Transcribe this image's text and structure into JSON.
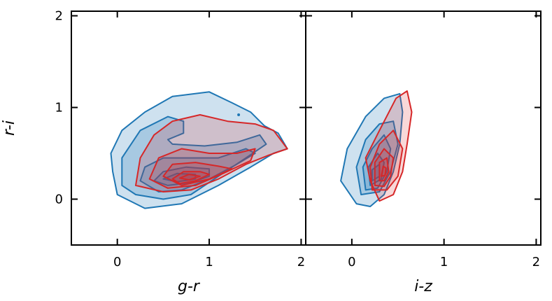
{
  "chart_data": [
    {
      "type": "contour",
      "xlabel": "g-r",
      "ylabel": "r-i",
      "xlim": [
        -0.5,
        2.05
      ],
      "ylim": [
        -0.5,
        2.05
      ],
      "xticks": [
        0,
        1,
        2
      ],
      "yticks": [
        0,
        1,
        2
      ],
      "x_tick_labels": [
        "0",
        "1",
        "2"
      ],
      "y_tick_labels": [
        "0",
        "1",
        "2"
      ],
      "series": [
        {
          "color": "#1f77b4",
          "fill": "rgba(31,119,180,0.22)",
          "levels": [
            [
              [
                0.0,
                0.05
              ],
              [
                -0.05,
                0.3
              ],
              [
                -0.07,
                0.5
              ],
              [
                0.05,
                0.75
              ],
              [
                0.3,
                0.95
              ],
              [
                0.6,
                1.12
              ],
              [
                1.0,
                1.17
              ],
              [
                1.25,
                1.05
              ],
              [
                1.45,
                0.95
              ],
              [
                1.6,
                0.8
              ],
              [
                1.75,
                0.72
              ],
              [
                1.85,
                0.55
              ],
              [
                1.7,
                0.5
              ],
              [
                1.45,
                0.35
              ],
              [
                1.1,
                0.15
              ],
              [
                0.7,
                -0.05
              ],
              [
                0.3,
                -0.1
              ]
            ],
            [
              [
                0.05,
                0.15
              ],
              [
                0.05,
                0.45
              ],
              [
                0.25,
                0.75
              ],
              [
                0.55,
                0.9
              ],
              [
                0.72,
                0.85
              ],
              [
                0.72,
                0.72
              ],
              [
                0.55,
                0.65
              ],
              [
                0.6,
                0.6
              ],
              [
                0.95,
                0.58
              ],
              [
                1.3,
                0.62
              ],
              [
                1.55,
                0.7
              ],
              [
                1.62,
                0.6
              ],
              [
                1.4,
                0.45
              ],
              [
                1.1,
                0.25
              ],
              [
                0.8,
                0.05
              ],
              [
                0.5,
                0.0
              ],
              [
                0.2,
                0.05
              ]
            ],
            [
              [
                0.25,
                0.2
              ],
              [
                0.3,
                0.35
              ],
              [
                0.5,
                0.45
              ],
              [
                0.8,
                0.45
              ],
              [
                1.1,
                0.45
              ],
              [
                1.4,
                0.55
              ],
              [
                1.5,
                0.5
              ],
              [
                1.3,
                0.38
              ],
              [
                1.0,
                0.22
              ],
              [
                0.7,
                0.1
              ],
              [
                0.45,
                0.08
              ]
            ],
            [
              [
                0.4,
                0.2
              ],
              [
                0.5,
                0.3
              ],
              [
                0.75,
                0.35
              ],
              [
                1.0,
                0.33
              ],
              [
                1.0,
                0.25
              ],
              [
                0.8,
                0.18
              ],
              [
                0.55,
                0.15
              ]
            ],
            [
              [
                0.5,
                0.22
              ],
              [
                0.65,
                0.28
              ],
              [
                0.85,
                0.27
              ],
              [
                0.85,
                0.22
              ],
              [
                0.65,
                0.19
              ]
            ]
          ]
        },
        {
          "color": "#d62728",
          "fill": "rgba(214,39,40,0.18)",
          "levels": [
            [
              [
                0.2,
                0.15
              ],
              [
                0.25,
                0.45
              ],
              [
                0.4,
                0.7
              ],
              [
                0.6,
                0.85
              ],
              [
                0.9,
                0.92
              ],
              [
                1.2,
                0.85
              ],
              [
                1.5,
                0.82
              ],
              [
                1.7,
                0.75
              ],
              [
                1.85,
                0.55
              ],
              [
                1.65,
                0.48
              ],
              [
                1.4,
                0.38
              ],
              [
                1.1,
                0.22
              ],
              [
                0.8,
                0.1
              ],
              [
                0.5,
                0.08
              ]
            ],
            [
              [
                0.35,
                0.22
              ],
              [
                0.45,
                0.45
              ],
              [
                0.7,
                0.55
              ],
              [
                1.0,
                0.5
              ],
              [
                1.3,
                0.5
              ],
              [
                1.5,
                0.55
              ],
              [
                1.45,
                0.42
              ],
              [
                1.15,
                0.28
              ],
              [
                0.85,
                0.15
              ],
              [
                0.55,
                0.12
              ]
            ],
            [
              [
                0.5,
                0.25
              ],
              [
                0.6,
                0.38
              ],
              [
                0.85,
                0.4
              ],
              [
                1.1,
                0.36
              ],
              [
                1.25,
                0.33
              ],
              [
                1.0,
                0.22
              ],
              [
                0.7,
                0.15
              ]
            ],
            [
              [
                0.6,
                0.22
              ],
              [
                0.72,
                0.3
              ],
              [
                0.9,
                0.3
              ],
              [
                1.0,
                0.27
              ],
              [
                0.85,
                0.2
              ],
              [
                0.68,
                0.17
              ]
            ],
            [
              [
                0.68,
                0.23
              ],
              [
                0.78,
                0.27
              ],
              [
                0.9,
                0.25
              ],
              [
                0.78,
                0.21
              ]
            ]
          ]
        }
      ]
    },
    {
      "type": "contour",
      "xlabel": "i-z",
      "ylabel": "",
      "xlim": [
        -0.5,
        2.05
      ],
      "ylim": [
        -0.5,
        2.05
      ],
      "xticks": [
        0,
        1,
        2
      ],
      "yticks": [
        0,
        1,
        2
      ],
      "x_tick_labels": [
        "0",
        "1",
        "2"
      ],
      "y_tick_labels": [],
      "series": [
        {
          "color": "#1f77b4",
          "fill": "rgba(31,119,180,0.22)",
          "levels": [
            [
              [
                0.05,
                -0.05
              ],
              [
                -0.12,
                0.2
              ],
              [
                -0.05,
                0.55
              ],
              [
                0.15,
                0.9
              ],
              [
                0.35,
                1.1
              ],
              [
                0.52,
                1.15
              ],
              [
                0.55,
                0.95
              ],
              [
                0.52,
                0.6
              ],
              [
                0.45,
                0.3
              ],
              [
                0.35,
                0.05
              ],
              [
                0.2,
                -0.08
              ]
            ],
            [
              [
                0.1,
                0.05
              ],
              [
                0.05,
                0.35
              ],
              [
                0.15,
                0.65
              ],
              [
                0.3,
                0.82
              ],
              [
                0.45,
                0.85
              ],
              [
                0.5,
                0.6
              ],
              [
                0.42,
                0.3
              ],
              [
                0.3,
                0.08
              ]
            ],
            [
              [
                0.15,
                0.1
              ],
              [
                0.12,
                0.35
              ],
              [
                0.22,
                0.55
              ],
              [
                0.35,
                0.7
              ],
              [
                0.42,
                0.55
              ],
              [
                0.38,
                0.3
              ],
              [
                0.28,
                0.12
              ]
            ],
            [
              [
                0.2,
                0.15
              ],
              [
                0.18,
                0.35
              ],
              [
                0.28,
                0.5
              ],
              [
                0.35,
                0.4
              ],
              [
                0.32,
                0.22
              ]
            ],
            [
              [
                0.22,
                0.2
              ],
              [
                0.22,
                0.32
              ],
              [
                0.3,
                0.38
              ],
              [
                0.3,
                0.25
              ]
            ]
          ]
        },
        {
          "color": "#d62728",
          "fill": "rgba(214,39,40,0.18)",
          "levels": [
            [
              [
                0.3,
                -0.02
              ],
              [
                0.2,
                0.2
              ],
              [
                0.15,
                0.45
              ],
              [
                0.3,
                0.75
              ],
              [
                0.48,
                1.1
              ],
              [
                0.6,
                1.18
              ],
              [
                0.65,
                0.95
              ],
              [
                0.6,
                0.6
              ],
              [
                0.55,
                0.3
              ],
              [
                0.45,
                0.05
              ]
            ],
            [
              [
                0.22,
                0.1
              ],
              [
                0.2,
                0.35
              ],
              [
                0.3,
                0.6
              ],
              [
                0.45,
                0.75
              ],
              [
                0.55,
                0.55
              ],
              [
                0.5,
                0.25
              ],
              [
                0.38,
                0.1
              ]
            ],
            [
              [
                0.25,
                0.15
              ],
              [
                0.25,
                0.4
              ],
              [
                0.35,
                0.55
              ],
              [
                0.45,
                0.45
              ],
              [
                0.42,
                0.25
              ],
              [
                0.35,
                0.14
              ]
            ],
            [
              [
                0.3,
                0.2
              ],
              [
                0.3,
                0.4
              ],
              [
                0.38,
                0.45
              ],
              [
                0.4,
                0.3
              ],
              [
                0.35,
                0.2
              ]
            ],
            [
              [
                0.32,
                0.25
              ],
              [
                0.34,
                0.36
              ],
              [
                0.37,
                0.34
              ],
              [
                0.36,
                0.26
              ]
            ]
          ]
        }
      ]
    }
  ]
}
